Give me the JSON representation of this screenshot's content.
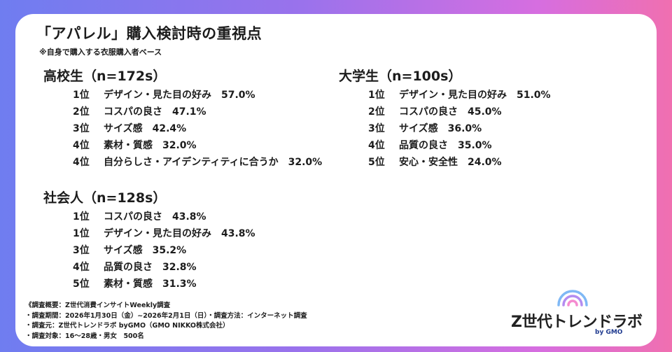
{
  "title": "「アパレル」購入検討時の重視点",
  "subtitle": "※自身で購入する衣服購入者ベース",
  "groups": [
    {
      "label": "高校生（n=172s）",
      "items": [
        {
          "rank": "1位",
          "item": "デザイン・見た目の好み",
          "value": "57.0%"
        },
        {
          "rank": "2位",
          "item": "コスパの良さ",
          "value": "47.1%"
        },
        {
          "rank": "3位",
          "item": "サイズ感",
          "value": "42.4%"
        },
        {
          "rank": "4位",
          "item": "素材・質感",
          "value": "32.0%"
        },
        {
          "rank": "4位",
          "item": "自分らしさ・アイデンティティに合うか",
          "value": "32.0%"
        }
      ]
    },
    {
      "label": "大学生（n=100s）",
      "items": [
        {
          "rank": "1位",
          "item": "デザイン・見た目の好み",
          "value": "51.0%"
        },
        {
          "rank": "2位",
          "item": "コスパの良さ",
          "value": "45.0%"
        },
        {
          "rank": "3位",
          "item": "サイズ感",
          "value": "36.0%"
        },
        {
          "rank": "4位",
          "item": "品質の良さ",
          "value": "35.0%"
        },
        {
          "rank": "5位",
          "item": "安心・安全性",
          "value": "24.0%"
        }
      ]
    },
    {
      "label": "社会人（n=128s）",
      "items": [
        {
          "rank": "1位",
          "item": "コスパの良さ",
          "value": "43.8%"
        },
        {
          "rank": "1位",
          "item": "デザイン・見た目の好み",
          "value": "43.8%"
        },
        {
          "rank": "3位",
          "item": "サイズ感",
          "value": "35.2%"
        },
        {
          "rank": "4位",
          "item": "品質の良さ",
          "value": "32.8%"
        },
        {
          "rank": "5位",
          "item": "素材・質感",
          "value": "31.3%"
        }
      ]
    }
  ],
  "footer": [
    "《調査概要：Z世代消費インサイトWeekly調査",
    "・調査期間：2026年1月30日（金）~2026年2月1日（日）・調査方法：インターネット調査",
    "・調査元：Z世代トレンドラボ byGMO（GMO NIKKO株式会社）",
    "・調査対象：16～28歳・男女　500名"
  ],
  "logo": {
    "text": "Z世代トレンドラボ",
    "by": "by GMO",
    "icon": "broadcast-arcs-icon",
    "colors": [
      "#f58bd0",
      "#b48cf0",
      "#7fb8f5"
    ]
  },
  "colors": {
    "gradient_start": "#6f7df0",
    "gradient_end": "#f06fb0",
    "text": "#1c1c1c",
    "brand_blue": "#1f3a8f"
  }
}
